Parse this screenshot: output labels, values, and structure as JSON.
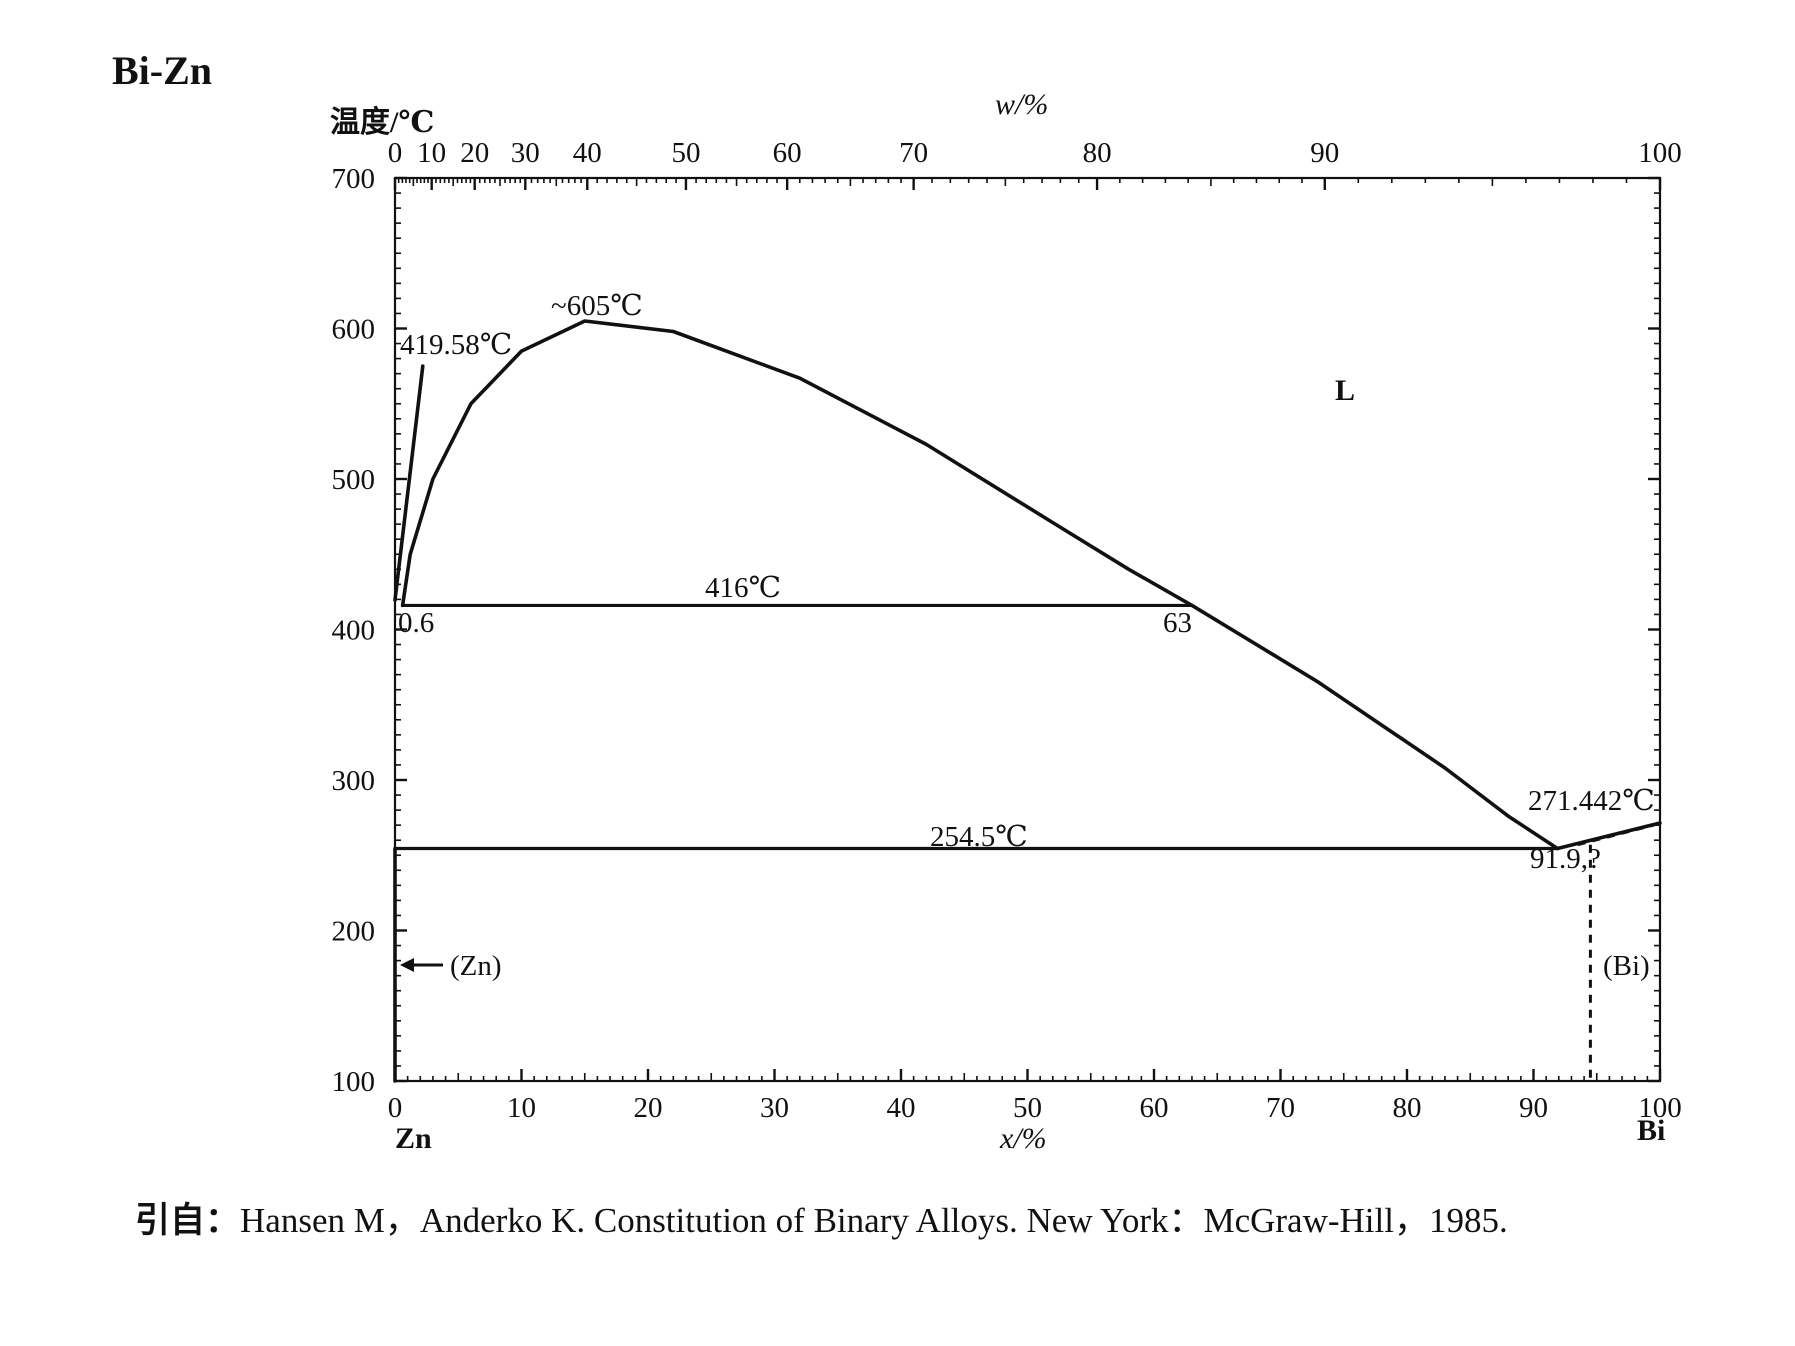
{
  "chart_data": {
    "type": "line",
    "title": "Bi-Zn",
    "ylabel": "温度/℃",
    "xlabel": "x/%",
    "top_xlabel": "w/%",
    "ylim": [
      100,
      700
    ],
    "xlim": [
      0,
      100
    ],
    "y_ticks": [
      "100",
      "200",
      "300",
      "400",
      "500",
      "600",
      "700"
    ],
    "x_ticks": [
      "0",
      "10",
      "20",
      "30",
      "40",
      "50",
      "60",
      "70",
      "80",
      "90",
      "100"
    ],
    "top_ticks": [
      {
        "label": "0",
        "x": 0
      },
      {
        "label": "10",
        "x": 2.9
      },
      {
        "label": "20",
        "x": 6.3
      },
      {
        "label": "30",
        "x": 10.3
      },
      {
        "label": "40",
        "x": 15.2
      },
      {
        "label": "50",
        "x": 23.0
      },
      {
        "label": "60",
        "x": 31.0
      },
      {
        "label": "70",
        "x": 41.0
      },
      {
        "label": "80",
        "x": 55.5
      },
      {
        "label": "90",
        "x": 73.5
      },
      {
        "label": "100",
        "x": 100
      }
    ],
    "x_end_labels": {
      "left": "Zn",
      "right": "Bi"
    },
    "series": [
      {
        "style": "solid",
        "points": [
          [
            0.6,
            416
          ],
          [
            1.2,
            450
          ],
          [
            3,
            500
          ],
          [
            6,
            550
          ],
          [
            10,
            585
          ],
          [
            15,
            605
          ],
          [
            22,
            598
          ],
          [
            32,
            567
          ],
          [
            42,
            523
          ],
          [
            52,
            471
          ],
          [
            58,
            440
          ],
          [
            63,
            416
          ],
          [
            73,
            365
          ],
          [
            83,
            308
          ],
          [
            88,
            276
          ],
          [
            91.9,
            254.5
          ]
        ]
      },
      {
        "style": "solid",
        "points": [
          [
            0,
            419.58
          ],
          [
            2.2,
            575
          ]
        ]
      },
      {
        "style": "solid",
        "points": [
          [
            91.9,
            254.5
          ],
          [
            100,
            271.442
          ]
        ]
      },
      {
        "style": "dashed",
        "points": [
          [
            93.5,
            257
          ],
          [
            99.5,
            270
          ]
        ]
      },
      {
        "style": "dashed",
        "points": [
          [
            94.5,
            257
          ],
          [
            94.5,
            100
          ]
        ]
      },
      {
        "style": "solid",
        "points": [
          [
            0,
            254.5
          ],
          [
            0,
            100
          ]
        ]
      }
    ],
    "horizontal_lines": [
      {
        "y": 416,
        "x1": 0.6,
        "x2": 63,
        "label": "416℃"
      },
      {
        "y": 254.5,
        "x1": 0,
        "x2": 91.9,
        "label": "254.5℃"
      }
    ],
    "annotations": {
      "max": "~605℃",
      "zn_melt": "419.58℃",
      "bi_melt": "271.442℃",
      "p06": "0.6",
      "p63": "63",
      "p919": "91.9,?",
      "liquid": "L",
      "zn_phase": "(Zn)",
      "bi_phase": "(Bi)"
    }
  },
  "citation": {
    "prefix": "引自：",
    "text": "Hansen M，Anderko K. Constitution of Binary Alloys. New York：McGraw-Hill，1985."
  }
}
